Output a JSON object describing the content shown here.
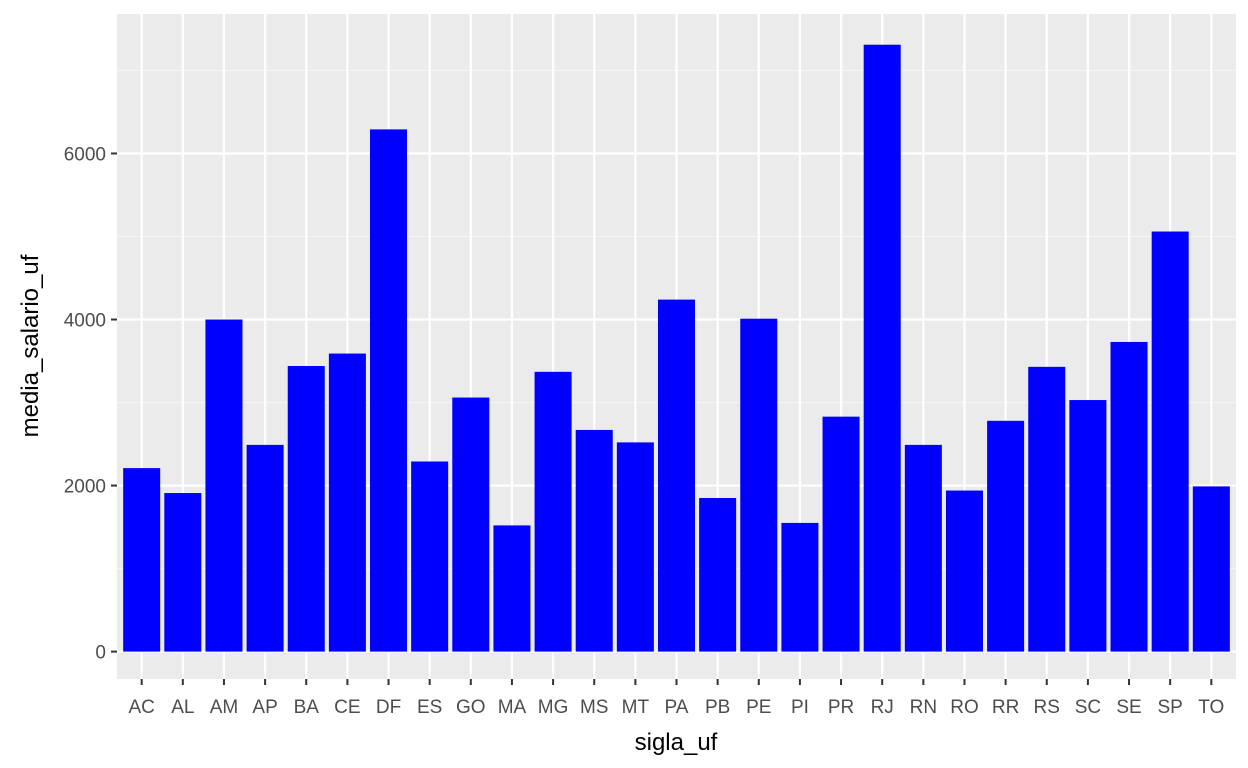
{
  "colors": {
    "panel_background": "#EBEBEB",
    "grid_major": "#FFFFFF",
    "grid_minor": "#F5F5F5",
    "bar_fill": "#0000FF",
    "tick_text": "#4D4D4D",
    "tick_mark": "#333333",
    "axis_title": "#000000"
  },
  "chart_data": {
    "type": "bar",
    "xlabel": "sigla_uf",
    "ylabel": "media_salario_uf",
    "categories": [
      "AC",
      "AL",
      "AM",
      "AP",
      "BA",
      "CE",
      "DF",
      "ES",
      "GO",
      "MA",
      "MG",
      "MS",
      "MT",
      "PA",
      "PB",
      "PE",
      "PI",
      "PR",
      "RJ",
      "RN",
      "RO",
      "RR",
      "RS",
      "SC",
      "SE",
      "SP",
      "TO"
    ],
    "values": [
      2210,
      1910,
      4000,
      2490,
      3440,
      3590,
      6290,
      2290,
      3060,
      1520,
      3370,
      2670,
      2520,
      4240,
      1850,
      4010,
      1550,
      2830,
      7310,
      2490,
      1940,
      2780,
      3430,
      3030,
      3730,
      5060,
      1990
    ],
    "yticks": [
      0,
      2000,
      4000,
      6000
    ],
    "ytick_labels": [
      "0",
      "2000",
      "4000",
      "6000"
    ],
    "ylim": [
      -330,
      7680
    ],
    "grid": true,
    "legend": "none"
  }
}
